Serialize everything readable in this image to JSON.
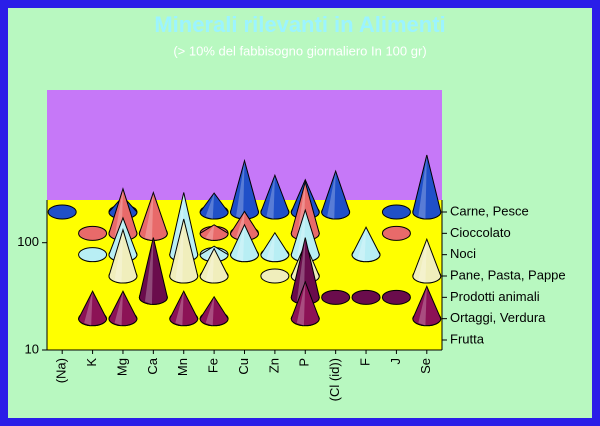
{
  "chart_data": {
    "type": "cone3d",
    "title": "Minerali rilevanti in Alimenti",
    "subtitle": "(> 10% del fabbisogno giornaliero In 100 gr)",
    "categories": [
      "(Na)",
      "K",
      "Mg",
      "Ca",
      "Mn",
      "Fe",
      "Cu",
      "Zn",
      "P",
      "(Cl (id))",
      "F",
      "J",
      "Se"
    ],
    "log_scale": true,
    "ylim": [
      10,
      250
    ],
    "yticks": [
      10,
      100
    ],
    "series": [
      {
        "name": "Carne, Pesce",
        "color": "#2050c8",
        "values": [
          10,
          null,
          14,
          null,
          null,
          15,
          30,
          22,
          20,
          24,
          null,
          10,
          34
        ]
      },
      {
        "name": "Cioccolato",
        "color": "#e86a6a",
        "values": [
          null,
          10,
          26,
          24,
          null,
          12,
          16,
          null,
          30,
          null,
          null,
          10,
          null
        ]
      },
      {
        "name": "Noci",
        "color": "#b8eef4",
        "values": [
          null,
          10,
          22,
          null,
          38,
          12,
          19,
          16,
          26,
          null,
          18,
          null,
          null
        ]
      },
      {
        "name": "Pane, Pasta, Pappe",
        "color": "#f0eebc",
        "values": [
          null,
          null,
          27,
          null,
          34,
          18,
          null,
          10,
          20,
          null,
          null,
          null,
          22
        ]
      },
      {
        "name": "Prodotti animali",
        "color": "#6a0c4c",
        "values": [
          null,
          null,
          null,
          36,
          null,
          null,
          null,
          null,
          36,
          10,
          10,
          10,
          null
        ]
      },
      {
        "name": "Ortaggi, Verdura",
        "color": "#8c1256",
        "values": [
          null,
          18,
          18,
          null,
          18,
          16,
          null,
          null,
          22,
          null,
          null,
          null,
          20
        ]
      },
      {
        "name": "Frutta",
        "color": "#a01860",
        "values": [
          null,
          null,
          null,
          null,
          null,
          null,
          null,
          null,
          null,
          null,
          null,
          null,
          null
        ]
      }
    ]
  }
}
